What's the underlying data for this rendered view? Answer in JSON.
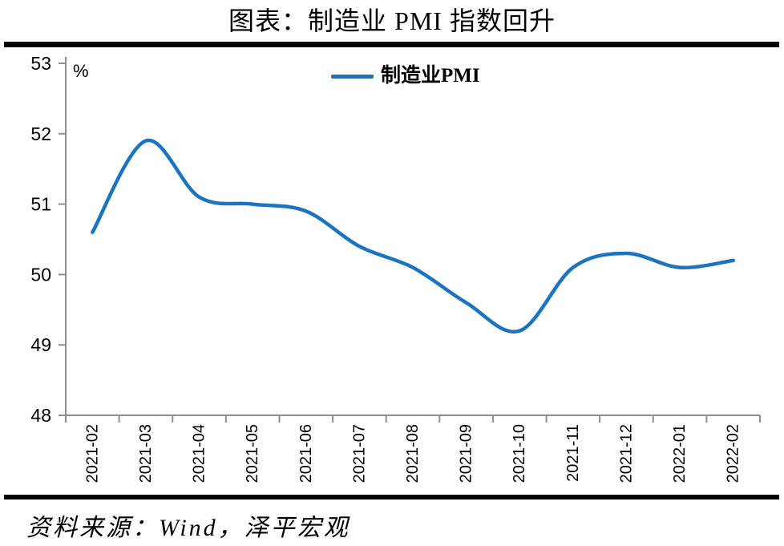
{
  "title": "图表：制造业 PMI 指数回升",
  "source_note": "资料来源：Wind，泽平宏观",
  "unit_label": "%",
  "colors": {
    "line": "#1B73C4",
    "axis": "#8F8F8F",
    "rule": "#000000",
    "text": "#000000"
  },
  "legend": {
    "label": "制造业PMI"
  },
  "chart_data": {
    "type": "line",
    "title": "图表：制造业 PMI 指数回升",
    "xlabel": "",
    "ylabel": "%",
    "legend_entries": [
      "制造业PMI"
    ],
    "legend_position": "top-center",
    "grid": false,
    "smooth": true,
    "categories": [
      "2021-02",
      "2021-03",
      "2021-04",
      "2021-05",
      "2021-06",
      "2021-07",
      "2021-08",
      "2021-09",
      "2021-10",
      "2021-11",
      "2021-12",
      "2022-01",
      "2022-02"
    ],
    "series": [
      {
        "name": "制造业PMI",
        "color": "#1B73C4",
        "values": [
          50.6,
          51.9,
          51.1,
          51.0,
          50.9,
          50.4,
          50.1,
          49.6,
          49.2,
          50.1,
          50.3,
          50.1,
          50.2
        ]
      }
    ],
    "ylim": [
      48,
      53
    ],
    "yticks": [
      48,
      49,
      50,
      51,
      52,
      53
    ]
  }
}
